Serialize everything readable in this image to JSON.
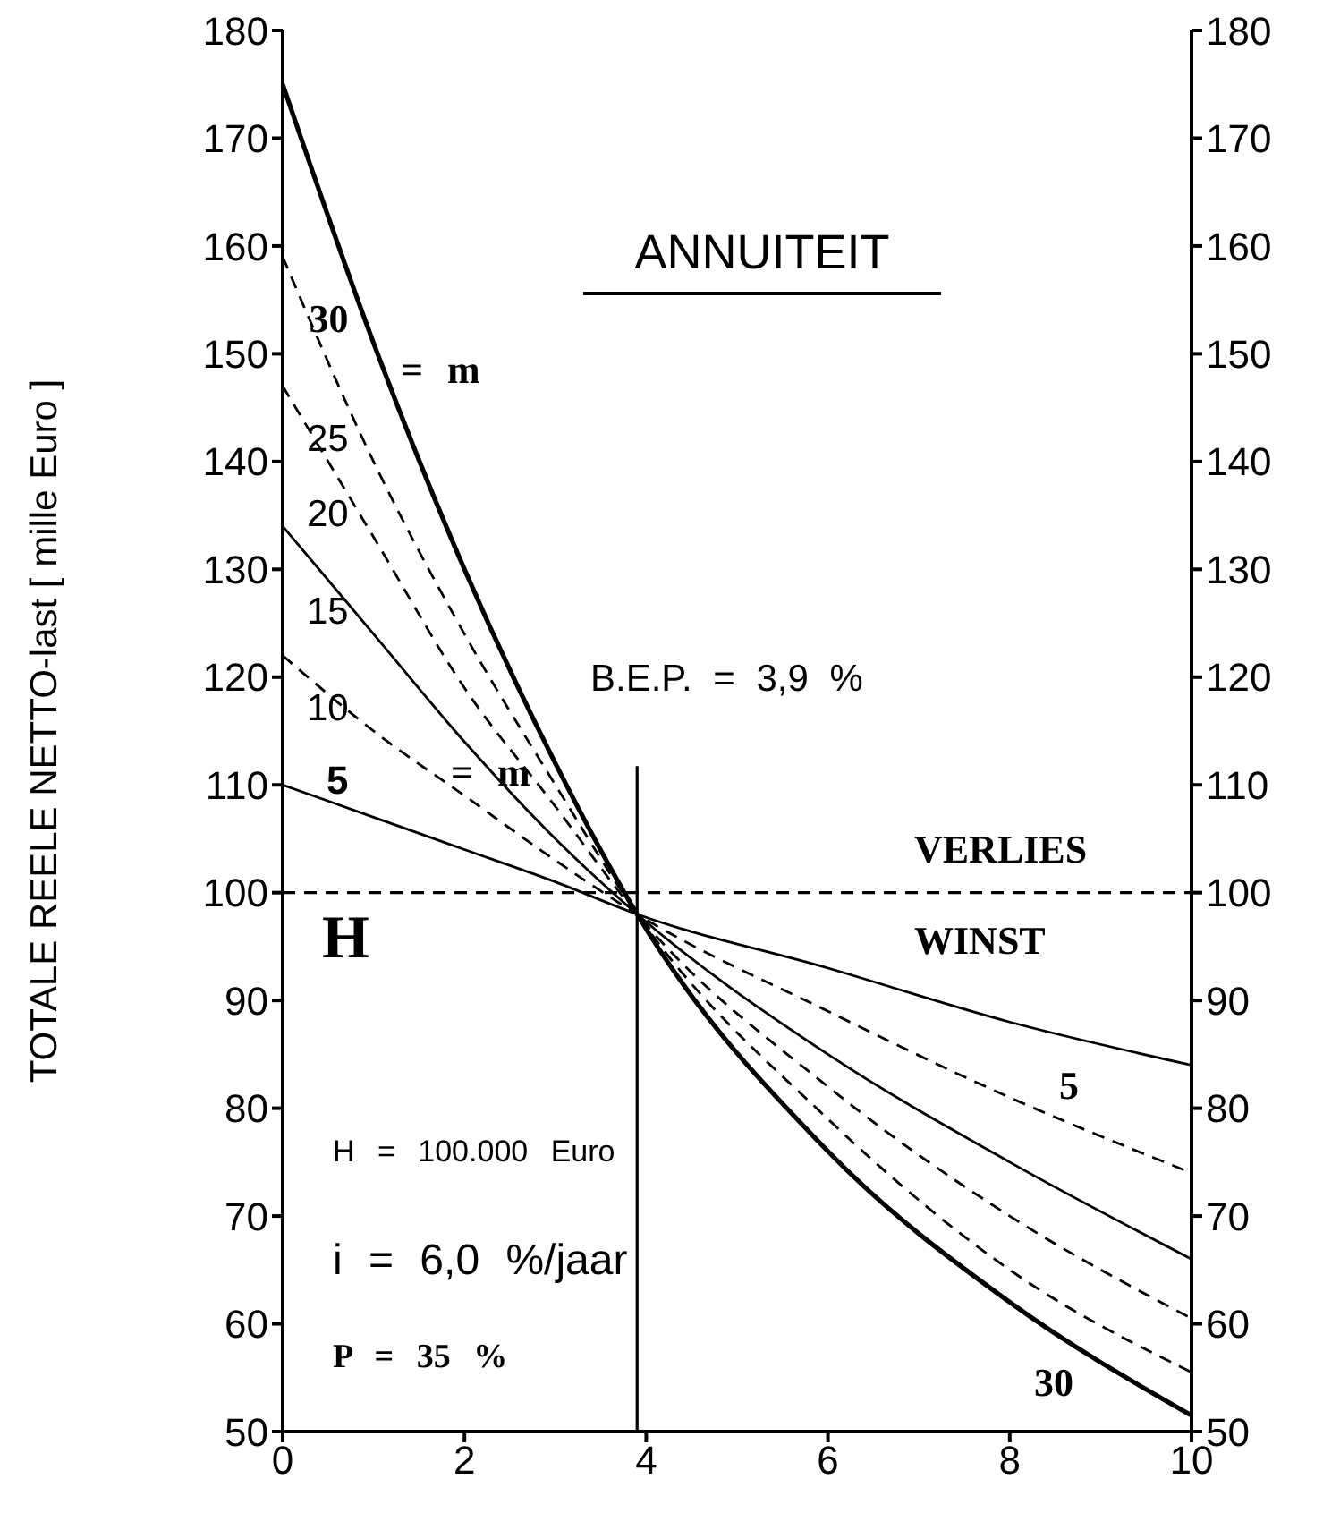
{
  "chart_data": {
    "type": "line",
    "title": "ANNUITEIT",
    "ylabel": "TOTALE REELE NETTO-last [ mille Euro ]",
    "x": [
      0,
      1,
      2,
      3,
      3.9,
      6,
      8,
      10
    ],
    "series": [
      {
        "name": "30",
        "color": "#000000",
        "line_style": "solid",
        "values": [
          175,
          151,
          130,
          112,
          98,
          76,
          62,
          51.5
        ]
      },
      {
        "name": "25",
        "color": "#000000",
        "line_style": "dashed",
        "values": [
          159,
          140,
          124,
          110,
          98,
          79,
          65,
          55.5
        ]
      },
      {
        "name": "20",
        "color": "#000000",
        "line_style": "dashed",
        "values": [
          147,
          133,
          119,
          108,
          98,
          82,
          70,
          60.5
        ]
      },
      {
        "name": "15",
        "color": "#000000",
        "line_style": "solid",
        "values": [
          134,
          124,
          114,
          105,
          98,
          85,
          75,
          66
        ]
      },
      {
        "name": "10",
        "color": "#000000",
        "line_style": "dashed",
        "values": [
          122,
          115,
          109,
          103,
          98,
          89,
          81,
          74
        ]
      },
      {
        "name": "5",
        "color": "#000000",
        "line_style": "solid",
        "values": [
          110,
          107,
          104,
          101,
          98,
          93,
          88,
          84
        ]
      }
    ],
    "xlim": [
      0,
      10
    ],
    "xticks": [
      0,
      2,
      4,
      6,
      8,
      10
    ],
    "ylim": [
      50,
      180
    ],
    "yticks": [
      50,
      60,
      70,
      80,
      90,
      100,
      110,
      120,
      130,
      140,
      150,
      160,
      170,
      180
    ],
    "y2lim": [
      50,
      180
    ],
    "y2ticks": [
      50,
      60,
      70,
      80,
      90,
      100,
      110,
      120,
      130,
      140,
      150,
      160,
      170,
      180
    ],
    "ref_lines": [
      {
        "axis": "y",
        "value": 100,
        "line_style": "dashed",
        "color": "#000000"
      },
      {
        "axis": "x",
        "value": 3.9,
        "label": "B.E.P. = 3,9 %",
        "line_style": "solid",
        "color": "#000000"
      }
    ],
    "annotations": [
      "= m",
      "= m",
      "5",
      "30",
      "VERLIES",
      "WINST",
      "H",
      "H = 100.000 Euro",
      "i = 6,0 %/jaar",
      "P = 35 %"
    ]
  }
}
